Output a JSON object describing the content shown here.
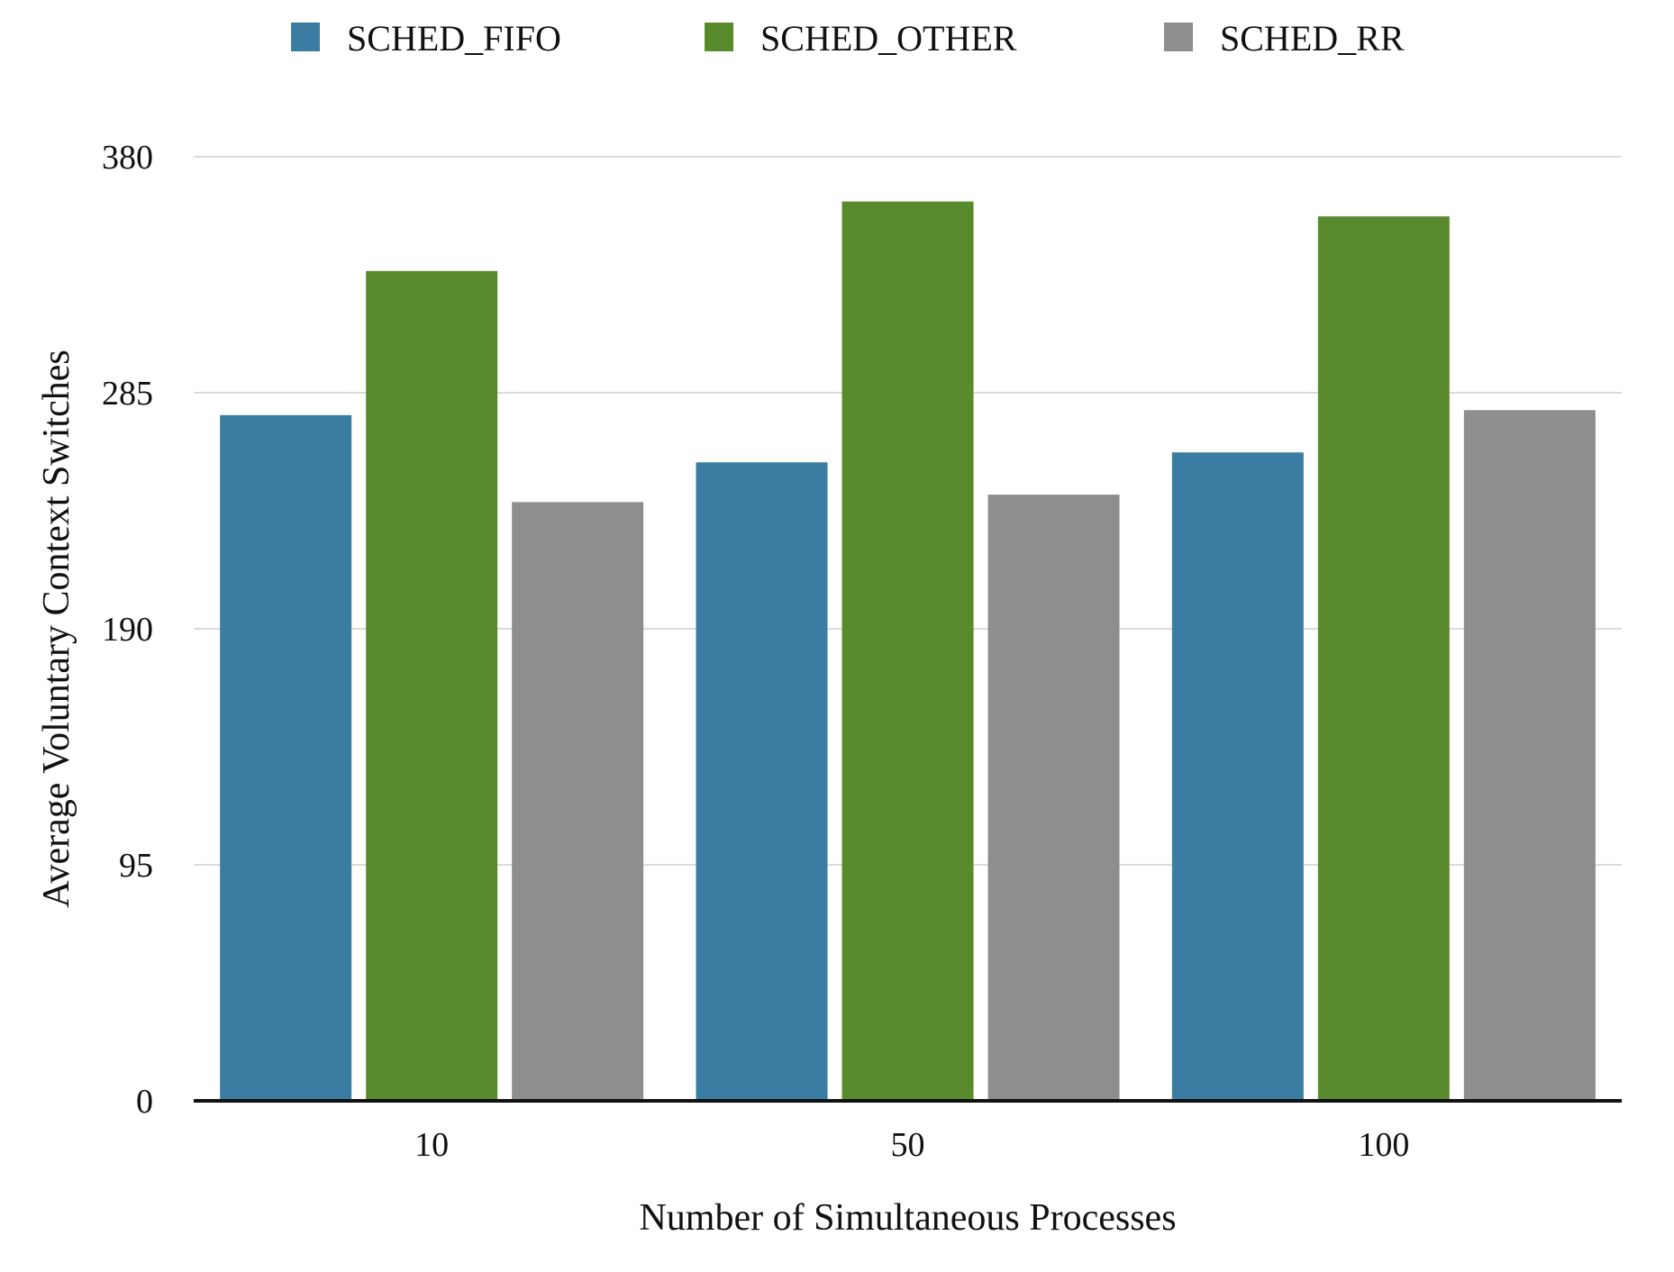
{
  "chart_data": {
    "type": "bar",
    "categories": [
      "10",
      "50",
      "100"
    ],
    "series": [
      {
        "name": "SCHED_FIFO",
        "color": "#3b7ca2",
        "values": [
          276,
          257,
          261
        ]
      },
      {
        "name": "SCHED_OTHER",
        "color": "#5a8a2e",
        "values": [
          334,
          362,
          356
        ]
      },
      {
        "name": "SCHED_RR",
        "color": "#8e8e8e",
        "values": [
          241,
          244,
          278
        ]
      }
    ],
    "xlabel": "Number of Simultaneous Processes",
    "ylabel": "Average Voluntary Context Switches",
    "ylim": [
      0,
      380
    ],
    "yticks": [
      "0",
      "95",
      "190",
      "285",
      "380"
    ],
    "grid": true,
    "legend_position": "top"
  }
}
